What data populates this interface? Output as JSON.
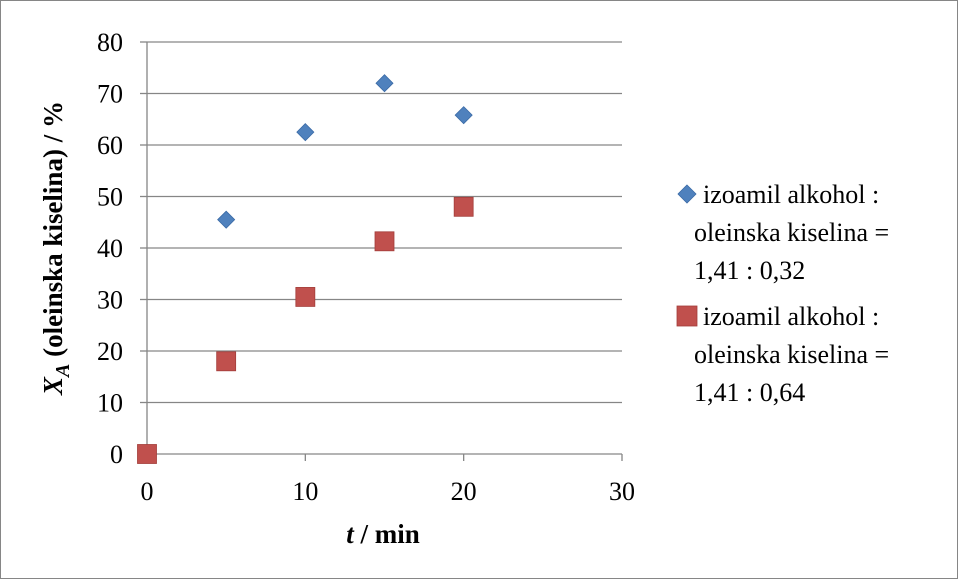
{
  "chart_data": {
    "type": "scatter",
    "title": "",
    "xlabel": {
      "var": "t",
      "unit": " / min"
    },
    "ylabel": {
      "var": "X",
      "sub": "A",
      "rest": " (oleinska kiselina) / %"
    },
    "xlim": [
      0,
      30
    ],
    "ylim": [
      0,
      80
    ],
    "xticks": [
      "0",
      "10",
      "20",
      "30"
    ],
    "yticks": [
      "0",
      "10",
      "20",
      "30",
      "40",
      "50",
      "60",
      "70",
      "80"
    ],
    "grid": "horizontal",
    "legend_position": "right",
    "series": [
      {
        "name": "izoamil alkohol : oleinska kiselina = 1,41 : 0,32",
        "legend_lines": [
          "izoamil alkohol :",
          "oleinska kiselina =",
          "1,41 : 0,32"
        ],
        "marker": "diamond",
        "color": "#4F81BD",
        "x": [
          5,
          10,
          15,
          20
        ],
        "y": [
          45.5,
          62.5,
          72,
          65.8
        ]
      },
      {
        "name": "izoamil alkohol : oleinska kiselina = 1,41 : 0,64",
        "legend_lines": [
          "izoamil alkohol :",
          "oleinska kiselina =",
          "1,41 : 0,64"
        ],
        "marker": "square",
        "color": "#C0504D",
        "x": [
          0,
          5,
          10,
          15,
          20
        ],
        "y": [
          0,
          18,
          30.5,
          41.3,
          48
        ]
      }
    ]
  }
}
